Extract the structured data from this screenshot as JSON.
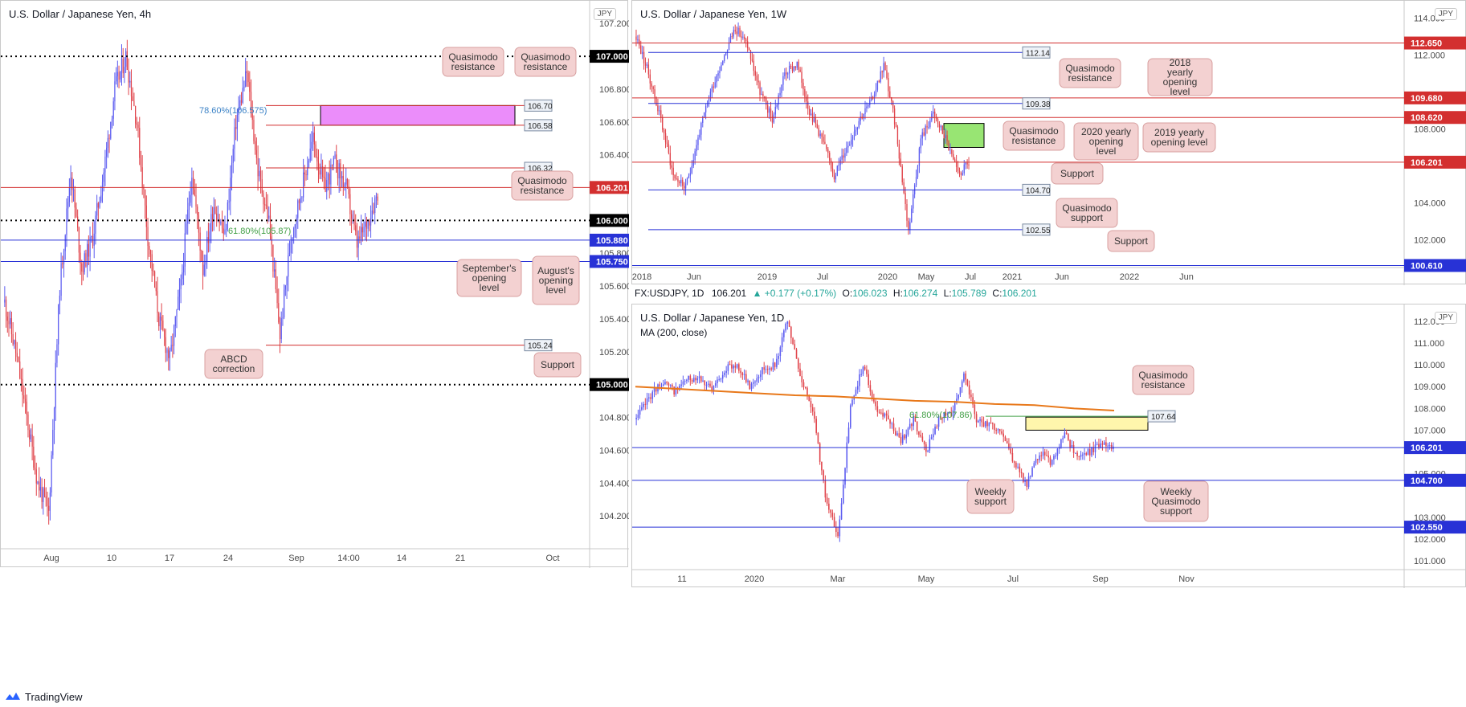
{
  "footer": {
    "brand": "TradingView",
    "logo_icon": "tradingview-logo-icon"
  },
  "panels": {
    "h4": {
      "title": "U.S. Dollar / Japanese Yen, 4h",
      "currency": "JPY"
    },
    "weekly": {
      "title": "U.S. Dollar / Japanese Yen, 1W",
      "currency": "JPY"
    },
    "daily": {
      "title": "U.S. Dollar / Japanese Yen, 1D",
      "currency": "JPY",
      "indicator": "MA (200, close)",
      "ohlc": {
        "symbol": "FX:USDJPY, 1D",
        "last": "106.201",
        "change": "▲ +0.177 (+0.17%)",
        "o_label": "O:",
        "o": "106.023",
        "h_label": "H:",
        "h": "106.274",
        "l_label": "L:",
        "l": "105.789",
        "c_label": "C:",
        "c": "106.201"
      }
    }
  },
  "chart_data": [
    {
      "id": "h4",
      "type": "candlestick",
      "title": "U.S. Dollar / Japanese Yen, 4h",
      "ylim": [
        104.0,
        107.25
      ],
      "yticks": [
        "107.200",
        "106.800",
        "106.600",
        "106.400",
        "105.800",
        "105.600",
        "105.400",
        "105.200",
        "104.800",
        "104.600",
        "104.400",
        "104.200"
      ],
      "xticks": [
        "Aug",
        "10",
        "17",
        "24",
        "Sep",
        "14:00",
        "14",
        "21",
        "Oct"
      ],
      "close_path": [
        105.5,
        105.2,
        104.8,
        104.4,
        104.22,
        105.6,
        106.3,
        105.7,
        105.9,
        106.3,
        106.8,
        107.0,
        106.6,
        105.9,
        105.4,
        105.15,
        105.6,
        106.3,
        105.7,
        106.1,
        105.9,
        106.6,
        106.9,
        106.3,
        106.0,
        105.3,
        105.9,
        106.2,
        106.5,
        106.2,
        106.35,
        106.2,
        105.85,
        106.0,
        106.2
      ],
      "levels": [
        {
          "label": "107.000",
          "value": 107.0,
          "style": "dotted",
          "color": "#000000"
        },
        {
          "label": "106.70",
          "value": 106.7,
          "style": "tag"
        },
        {
          "label": "106.58",
          "value": 106.58,
          "style": "tag"
        },
        {
          "label": "106.32",
          "value": 106.32,
          "style": "tag"
        },
        {
          "label": "106.201",
          "value": 106.201,
          "style": "price",
          "color": "#d32f2f"
        },
        {
          "label": "106.000",
          "value": 106.0,
          "style": "dotted",
          "color": "#000000"
        },
        {
          "label": "105.880",
          "value": 105.88,
          "style": "price",
          "color": "#2832d6"
        },
        {
          "label": "105.750",
          "value": 105.75,
          "style": "price",
          "color": "#2832d6"
        },
        {
          "label": "105.24",
          "value": 105.24,
          "style": "tag"
        },
        {
          "label": "105.000",
          "value": 105.0,
          "style": "dotted",
          "color": "#000000"
        }
      ],
      "fib_labels": [
        "78.60%(106.575)",
        "61.80%(105.87)"
      ],
      "zone": {
        "from": 106.58,
        "to": 106.7,
        "color": "#e879f9"
      },
      "annotations": [
        "Quasimodo resistance",
        "Quasimodo resistance",
        "Quasimodo resistance",
        "September's opening level",
        "August's opening level",
        "ABCD correction",
        "Support"
      ]
    },
    {
      "id": "weekly",
      "type": "candlestick",
      "title": "U.S. Dollar / Japanese Yen, 1W",
      "ylim": [
        100.5,
        114.5
      ],
      "yticks": [
        "114.000",
        "112.000",
        "108.000",
        "104.000",
        "102.000"
      ],
      "xticks": [
        "2018",
        "Jun",
        "2019",
        "Jul",
        "2020",
        "May",
        "Jul",
        "2021",
        "Jun",
        "2022",
        "Jun"
      ],
      "close_path": [
        113.0,
        111.0,
        108.5,
        105.5,
        104.8,
        107.5,
        110.0,
        111.8,
        113.5,
        112.5,
        110.0,
        108.5,
        111.0,
        111.5,
        109.0,
        107.5,
        105.5,
        107.0,
        108.5,
        109.5,
        111.5,
        108.0,
        102.5,
        107.5,
        108.8,
        107.5,
        105.5,
        106.2
      ],
      "levels": [
        {
          "label": "112.650",
          "value": 112.65,
          "style": "price",
          "color": "#d32f2f"
        },
        {
          "label": "112.14",
          "value": 112.14,
          "style": "tag"
        },
        {
          "label": "109.680",
          "value": 109.68,
          "style": "price",
          "color": "#d32f2f"
        },
        {
          "label": "109.38",
          "value": 109.38,
          "style": "tag"
        },
        {
          "label": "108.620",
          "value": 108.62,
          "style": "price",
          "color": "#d32f2f"
        },
        {
          "label": "106.201",
          "value": 106.201,
          "style": "price",
          "color": "#d32f2f"
        },
        {
          "label": "104.70",
          "value": 104.7,
          "style": "tag"
        },
        {
          "label": "102.55",
          "value": 102.55,
          "style": "tag"
        },
        {
          "label": "100.610",
          "value": 100.61,
          "style": "price",
          "color": "#2832d6"
        }
      ],
      "zone": {
        "from": 107.0,
        "to": 108.3,
        "color": "#86e05a"
      },
      "annotations": [
        "Quasimodo resistance",
        "2018 yearly opening level",
        "Quasimodo resistance",
        "2020 yearly opening level",
        "2019 yearly opening level",
        "Support",
        "Quasimodo support",
        "Support"
      ]
    },
    {
      "id": "daily",
      "type": "candlestick",
      "title": "U.S. Dollar / Japanese Yen, 1D",
      "ylim": [
        100.6,
        112.4
      ],
      "yticks": [
        "112.000",
        "111.000",
        "110.000",
        "109.000",
        "108.000",
        "107.000",
        "105.000",
        "103.000",
        "102.000",
        "101.000"
      ],
      "xticks": [
        "11",
        "2020",
        "Mar",
        "May",
        "Jul",
        "Sep",
        "Nov"
      ],
      "close_path": [
        107.5,
        108.5,
        109.2,
        108.8,
        109.3,
        109.5,
        108.8,
        109.8,
        110.0,
        109.0,
        109.8,
        110.0,
        112.0,
        109.5,
        108.0,
        104.0,
        102.0,
        108.0,
        110.0,
        108.0,
        107.5,
        106.5,
        107.5,
        106.0,
        107.5,
        107.8,
        109.5,
        107.5,
        107.2,
        107.0,
        105.5,
        104.5,
        106.0,
        105.5,
        106.8,
        105.8,
        106.0,
        106.4,
        106.2
      ],
      "ma200": [
        109.0,
        108.9,
        108.8,
        108.7,
        108.6,
        108.55,
        108.45,
        108.35,
        108.3,
        108.2,
        108.15,
        108.0,
        107.9
      ],
      "levels": [
        {
          "label": "107.64",
          "value": 107.64,
          "style": "tag"
        },
        {
          "label": "106.201",
          "value": 106.201,
          "style": "price",
          "color": "#2832d6"
        },
        {
          "label": "104.700",
          "value": 104.7,
          "style": "price",
          "color": "#2832d6"
        },
        {
          "label": "102.550",
          "value": 102.55,
          "style": "price",
          "color": "#2832d6"
        }
      ],
      "fib_labels": [
        "61.80%(107.86)"
      ],
      "zone": {
        "from": 107.0,
        "to": 107.6,
        "color": "#fff59d"
      },
      "annotations": [
        "Quasimodo resistance",
        "Weekly support",
        "Weekly Quasimodo support"
      ]
    }
  ]
}
